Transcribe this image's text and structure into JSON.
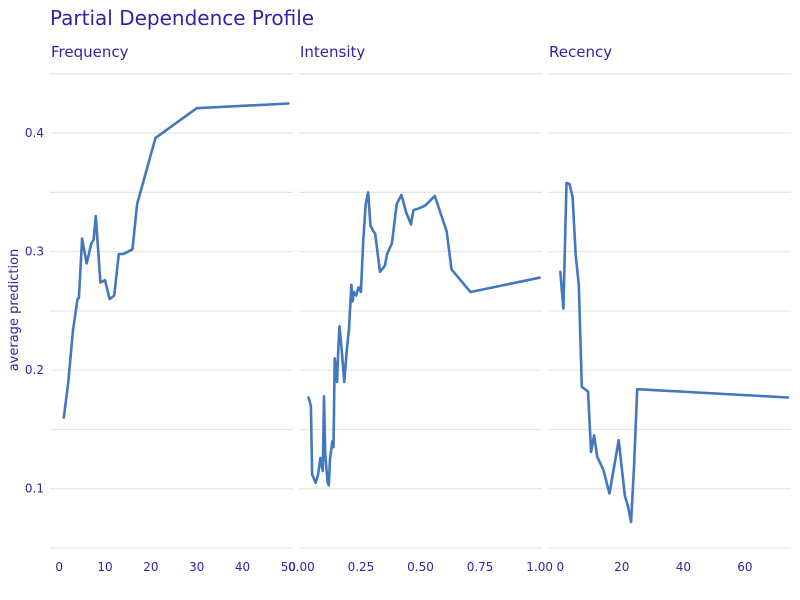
{
  "chart_data": {
    "type": "line",
    "title": "Partial Dependence Profile",
    "ylabel": "average prediction",
    "ylim": [
      0.05,
      0.46
    ],
    "yticks": [
      0.1,
      0.2,
      0.3,
      0.4
    ],
    "grid": true,
    "legend": "none",
    "line_color": "#4378bf",
    "panels": [
      {
        "name": "Frequency",
        "xlim": [
          -2,
          51
        ],
        "xticks": [
          0,
          10,
          20,
          30,
          40,
          50
        ],
        "tick_labels": [
          "0",
          "10",
          "20",
          "30",
          "40",
          "50"
        ],
        "x": [
          1,
          2,
          3,
          4,
          4.3,
          5,
          6,
          7,
          7.5,
          8,
          9,
          10,
          11,
          12,
          13,
          14,
          16,
          17,
          21,
          30,
          50
        ],
        "y": [
          0.16,
          0.19,
          0.233,
          0.26,
          0.261,
          0.311,
          0.29,
          0.307,
          0.31,
          0.33,
          0.274,
          0.276,
          0.26,
          0.263,
          0.298,
          0.298,
          0.302,
          0.34,
          0.396,
          0.421,
          0.425
        ]
      },
      {
        "name": "Intensity",
        "xlim": [
          -0.01,
          1.01
        ],
        "xticks": [
          0,
          0.25,
          0.5,
          0.75,
          1.0
        ],
        "tick_labels": [
          "0.00",
          "0.25",
          "0.50",
          "0.75",
          "1.00"
        ],
        "x": [
          0.03,
          0.04,
          0.045,
          0.06,
          0.07,
          0.08,
          0.09,
          0.095,
          0.1,
          0.11,
          0.115,
          0.12,
          0.13,
          0.135,
          0.14,
          0.15,
          0.155,
          0.16,
          0.17,
          0.18,
          0.19,
          0.2,
          0.21,
          0.215,
          0.22,
          0.23,
          0.24,
          0.25,
          0.26,
          0.27,
          0.28,
          0.29,
          0.3,
          0.31,
          0.33,
          0.35,
          0.36,
          0.38,
          0.4,
          0.42,
          0.44,
          0.46,
          0.47,
          0.5,
          0.52,
          0.56,
          0.61,
          0.63,
          0.71,
          1.0
        ],
        "y": [
          0.177,
          0.17,
          0.112,
          0.105,
          0.112,
          0.126,
          0.115,
          0.178,
          0.13,
          0.105,
          0.103,
          0.125,
          0.14,
          0.135,
          0.21,
          0.19,
          0.218,
          0.237,
          0.215,
          0.19,
          0.215,
          0.235,
          0.272,
          0.258,
          0.266,
          0.263,
          0.27,
          0.266,
          0.31,
          0.34,
          0.35,
          0.322,
          0.318,
          0.315,
          0.283,
          0.288,
          0.298,
          0.307,
          0.34,
          0.348,
          0.333,
          0.323,
          0.335,
          0.337,
          0.339,
          0.347,
          0.317,
          0.285,
          0.266,
          0.278
        ]
      },
      {
        "name": "Recency",
        "xlim": [
          -4,
          75
        ],
        "xticks": [
          0,
          20,
          40,
          60
        ],
        "tick_labels": [
          "0",
          "20",
          "40",
          "60"
        ],
        "x": [
          0,
          1,
          2,
          3,
          4,
          5,
          6,
          7,
          9,
          10,
          11,
          12,
          14,
          16,
          19,
          21,
          22,
          23,
          24,
          25,
          74
        ],
        "y": [
          0.283,
          0.252,
          0.358,
          0.357,
          0.346,
          0.297,
          0.272,
          0.186,
          0.182,
          0.131,
          0.145,
          0.127,
          0.116,
          0.096,
          0.141,
          0.094,
          0.085,
          0.072,
          0.12,
          0.184,
          0.177
        ]
      }
    ]
  }
}
